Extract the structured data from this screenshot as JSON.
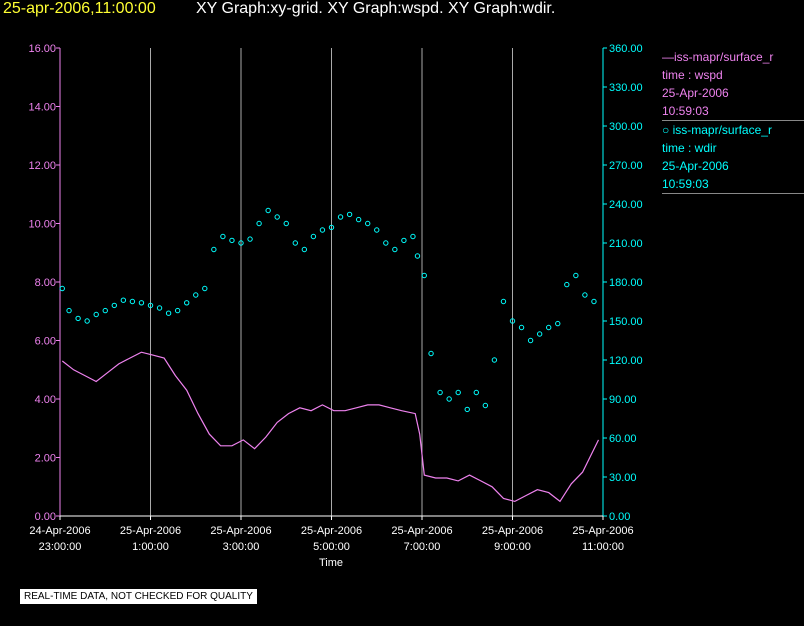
{
  "header": {
    "timestamp": "25-apr-2006,11:00:00",
    "graphs": "XY Graph:xy-grid.  XY Graph:wspd.  XY Graph:wdir."
  },
  "legend": [
    {
      "marker": "—",
      "name": "iss-mapr/surface_r",
      "field": "time : wspd",
      "date": "25-Apr-2006",
      "time": "10:59:03",
      "color": "#ee82ee"
    },
    {
      "marker": "○",
      "name": "iss-mapr/surface_r",
      "field": "time : wdir",
      "date": "25-Apr-2006",
      "time": "10:59:03",
      "color": "#00ffff"
    }
  ],
  "footer_note": "REAL-TIME DATA, NOT CHECKED FOR QUALITY",
  "chart_data": {
    "type": "line",
    "xlabel": "Time",
    "x_range_hours": [
      -1,
      11
    ],
    "x_ticks": [
      {
        "hour": -1,
        "date": "24-Apr-2006",
        "time": "23:00:00"
      },
      {
        "hour": 1,
        "date": "25-Apr-2006",
        "time": "1:00:00"
      },
      {
        "hour": 3,
        "date": "25-Apr-2006",
        "time": "3:00:00"
      },
      {
        "hour": 5,
        "date": "25-Apr-2006",
        "time": "5:00:00"
      },
      {
        "hour": 7,
        "date": "25-Apr-2006",
        "time": "7:00:00"
      },
      {
        "hour": 9,
        "date": "25-Apr-2006",
        "time": "9:00:00"
      },
      {
        "hour": 11,
        "date": "25-Apr-2006",
        "time": "11:00:00"
      }
    ],
    "y_left": {
      "range": [
        0,
        16
      ],
      "ticks": [
        "0.00",
        "2.00",
        "4.00",
        "6.00",
        "8.00",
        "10.00",
        "12.00",
        "14.00",
        "16.00"
      ],
      "color": "#ee82ee"
    },
    "y_right": {
      "range": [
        0,
        360
      ],
      "ticks": [
        "0.00",
        "30.00",
        "60.00",
        "90.00",
        "120.00",
        "150.00",
        "180.00",
        "210.00",
        "240.00",
        "270.00",
        "300.00",
        "330.00",
        "360.00"
      ],
      "color": "#00ffff"
    },
    "grid": "vertical",
    "series": [
      {
        "name": "wspd",
        "axis": "left",
        "style": "line",
        "color": "#ee82ee",
        "x": [
          -0.95,
          -0.7,
          -0.45,
          -0.2,
          0.05,
          0.3,
          0.55,
          0.8,
          1.05,
          1.3,
          1.55,
          1.8,
          2.05,
          2.3,
          2.55,
          2.8,
          3.05,
          3.3,
          3.55,
          3.8,
          4.05,
          4.3,
          4.55,
          4.8,
          5.05,
          5.3,
          5.55,
          5.8,
          6.05,
          6.3,
          6.55,
          6.85,
          6.95,
          7.05,
          7.3,
          7.55,
          7.8,
          8.05,
          8.3,
          8.55,
          8.8,
          9.05,
          9.3,
          9.55,
          9.8,
          10.05,
          10.3,
          10.55,
          10.9
        ],
        "y": [
          5.3,
          5.0,
          4.8,
          4.6,
          4.9,
          5.2,
          5.4,
          5.6,
          5.5,
          5.4,
          4.8,
          4.3,
          3.5,
          2.8,
          2.4,
          2.4,
          2.6,
          2.3,
          2.7,
          3.2,
          3.5,
          3.7,
          3.6,
          3.8,
          3.6,
          3.6,
          3.7,
          3.8,
          3.8,
          3.7,
          3.6,
          3.5,
          2.8,
          1.4,
          1.3,
          1.3,
          1.2,
          1.4,
          1.2,
          1.0,
          0.6,
          0.5,
          0.7,
          0.9,
          0.8,
          0.5,
          1.1,
          1.5,
          2.6
        ]
      },
      {
        "name": "wdir",
        "axis": "right",
        "style": "scatter",
        "color": "#00ffff",
        "x": [
          -0.95,
          -0.8,
          -0.6,
          -0.4,
          -0.2,
          0.0,
          0.2,
          0.4,
          0.6,
          0.8,
          1.0,
          1.2,
          1.4,
          1.6,
          1.8,
          2.0,
          2.2,
          2.4,
          2.6,
          2.8,
          3.0,
          3.2,
          3.4,
          3.6,
          3.8,
          4.0,
          4.2,
          4.4,
          4.6,
          4.8,
          5.0,
          5.2,
          5.4,
          5.6,
          5.8,
          6.0,
          6.2,
          6.4,
          6.6,
          6.8,
          6.9,
          7.05,
          7.2,
          7.4,
          7.6,
          7.8,
          8.0,
          8.2,
          8.4,
          8.6,
          8.8,
          9.0,
          9.2,
          9.4,
          9.6,
          9.8,
          10.0,
          10.2,
          10.4,
          10.6,
          10.8
        ],
        "y": [
          175,
          158,
          152,
          150,
          155,
          158,
          162,
          166,
          165,
          164,
          162,
          160,
          156,
          158,
          164,
          170,
          175,
          205,
          215,
          212,
          210,
          213,
          225,
          235,
          230,
          225,
          210,
          205,
          215,
          220,
          222,
          230,
          232,
          228,
          225,
          220,
          210,
          205,
          212,
          215,
          200,
          185,
          125,
          95,
          90,
          95,
          82,
          95,
          85,
          120,
          165,
          150,
          145,
          135,
          140,
          145,
          148,
          178,
          185,
          170,
          165
        ]
      }
    ]
  }
}
